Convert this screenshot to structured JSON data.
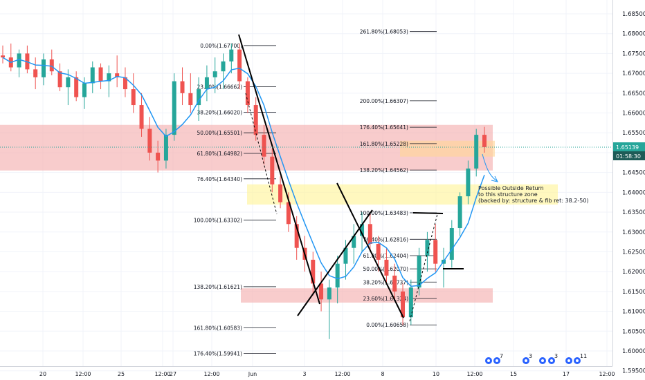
{
  "chart_data": {
    "type": "candlestick",
    "title": "",
    "xlabel": "",
    "ylabel": "",
    "ylim": [
      1.5955,
      1.6885
    ],
    "grid": true,
    "price_ticks": [
      "1.59500",
      "1.60000",
      "1.60500",
      "1.61000",
      "1.61500",
      "1.62000",
      "1.62500",
      "1.63000",
      "1.63500",
      "1.64000",
      "1.64500",
      "1.65000",
      "1.65500",
      "1.66000",
      "1.66500",
      "1.67000",
      "1.67500",
      "1.68000",
      "1.68500"
    ],
    "time_ticks": [
      "20",
      "12:00",
      "25",
      "12:00",
      "27",
      "12:00",
      "Jun",
      "3",
      "12:00",
      "8",
      "10",
      "12:00",
      "15",
      "17",
      "12:00"
    ],
    "current_price": "1.65139",
    "countdown": "01:58:30",
    "candles_ohlc": [
      [
        1.6745,
        1.677,
        1.6725,
        1.674
      ],
      [
        1.674,
        1.6775,
        1.6705,
        1.6715
      ],
      [
        1.6715,
        1.676,
        1.669,
        1.675
      ],
      [
        1.675,
        1.677,
        1.67,
        1.671
      ],
      [
        1.671,
        1.674,
        1.666,
        1.669
      ],
      [
        1.669,
        1.675,
        1.667,
        1.6735
      ],
      [
        1.6735,
        1.676,
        1.6695,
        1.6705
      ],
      [
        1.6705,
        1.6725,
        1.6655,
        1.6665
      ],
      [
        1.6665,
        1.671,
        1.662,
        1.669
      ],
      [
        1.669,
        1.6705,
        1.663,
        1.664
      ],
      [
        1.664,
        1.669,
        1.661,
        1.6675
      ],
      [
        1.6675,
        1.673,
        1.665,
        1.6715
      ],
      [
        1.6715,
        1.6725,
        1.666,
        1.668
      ],
      [
        1.668,
        1.672,
        1.664,
        1.67
      ],
      [
        1.67,
        1.6745,
        1.6665,
        1.669
      ],
      [
        1.669,
        1.6715,
        1.664,
        1.666
      ],
      [
        1.666,
        1.67,
        1.66,
        1.662
      ],
      [
        1.662,
        1.665,
        1.654,
        1.656
      ],
      [
        1.656,
        1.659,
        1.648,
        1.65
      ],
      [
        1.65,
        1.653,
        1.645,
        1.648
      ],
      [
        1.648,
        1.656,
        1.646,
        1.6545
      ],
      [
        1.6545,
        1.67,
        1.653,
        1.668
      ],
      [
        1.668,
        1.6715,
        1.662,
        1.665
      ],
      [
        1.665,
        1.67,
        1.66,
        1.662
      ],
      [
        1.662,
        1.669,
        1.658,
        1.666
      ],
      [
        1.666,
        1.672,
        1.663,
        1.669
      ],
      [
        1.669,
        1.674,
        1.665,
        1.6705
      ],
      [
        1.6705,
        1.675,
        1.666,
        1.673
      ],
      [
        1.673,
        1.6775,
        1.67,
        1.676
      ],
      [
        1.676,
        1.6775,
        1.666,
        1.668
      ],
      [
        1.668,
        1.669,
        1.66,
        1.662
      ],
      [
        1.662,
        1.664,
        1.653,
        1.6545
      ],
      [
        1.6545,
        1.657,
        1.647,
        1.649
      ],
      [
        1.649,
        1.651,
        1.64,
        1.642
      ],
      [
        1.642,
        1.644,
        1.636,
        1.6375
      ],
      [
        1.6375,
        1.64,
        1.63,
        1.632
      ],
      [
        1.632,
        1.634,
        1.623,
        1.626
      ],
      [
        1.626,
        1.629,
        1.62,
        1.623
      ],
      [
        1.623,
        1.625,
        1.614,
        1.617
      ],
      [
        1.617,
        1.62,
        1.61,
        1.613
      ],
      [
        1.613,
        1.618,
        1.603,
        1.616
      ],
      [
        1.616,
        1.624,
        1.612,
        1.622
      ],
      [
        1.622,
        1.628,
        1.618,
        1.626
      ],
      [
        1.626,
        1.632,
        1.622,
        1.629
      ],
      [
        1.629,
        1.635,
        1.625,
        1.632
      ],
      [
        1.632,
        1.6345,
        1.625,
        1.627
      ],
      [
        1.627,
        1.629,
        1.62,
        1.623
      ],
      [
        1.623,
        1.626,
        1.617,
        1.619
      ],
      [
        1.619,
        1.622,
        1.613,
        1.615
      ],
      [
        1.615,
        1.617,
        1.6065,
        1.6085
      ],
      [
        1.6085,
        1.618,
        1.6066,
        1.616
      ],
      [
        1.616,
        1.626,
        1.614,
        1.624
      ],
      [
        1.624,
        1.63,
        1.62,
        1.628
      ],
      [
        1.628,
        1.632,
        1.62,
        1.622
      ],
      [
        1.622,
        1.626,
        1.616,
        1.623
      ],
      [
        1.623,
        1.633,
        1.621,
        1.631
      ],
      [
        1.631,
        1.64,
        1.629,
        1.639
      ],
      [
        1.639,
        1.648,
        1.637,
        1.646
      ],
      [
        1.646,
        1.656,
        1.644,
        1.6545
      ],
      [
        1.6545,
        1.6565,
        1.65,
        1.6514
      ]
    ]
  },
  "fib_left": [
    {
      "label": "0.00%(1.67700)",
      "price": 1.677
    },
    {
      "label": "23.60%(1.66662)",
      "price": 1.66662
    },
    {
      "label": "38.20%(1.66020)",
      "price": 1.6602
    },
    {
      "label": "50.00%(1.65501)",
      "price": 1.65501
    },
    {
      "label": "61.80%(1.64982)",
      "price": 1.64982
    },
    {
      "label": "76.40%(1.64340)",
      "price": 1.6434
    },
    {
      "label": "100.00%(1.63302)",
      "price": 1.63302
    },
    {
      "label": "138.20%(1.61621)",
      "price": 1.61621
    },
    {
      "label": "161.80%(1.60583)",
      "price": 1.60583
    },
    {
      "label": "176.40%(1.59941)",
      "price": 1.59941
    }
  ],
  "fib_right": [
    {
      "label": "261.80%(1.68053)",
      "price": 1.68053
    },
    {
      "label": "200.00%(1.66307)",
      "price": 1.66307
    },
    {
      "label": "176.40%(1.65641)",
      "price": 1.65641
    },
    {
      "label": "161.80%(1.65228)",
      "price": 1.65228
    },
    {
      "label": "138.20%(1.64562)",
      "price": 1.64562
    },
    {
      "label": "100.00%(1.63483)",
      "price": 1.63483
    },
    {
      "label": "76.40%(1.62816)",
      "price": 1.62816
    },
    {
      "label": "61.80%(1.62404)",
      "price": 1.62404
    },
    {
      "label": "50.00%(1.62070)",
      "price": 1.6207
    },
    {
      "label": "38.20%(1.61737)",
      "price": 1.61737
    },
    {
      "label": "23.60%(1.61324)",
      "price": 1.61324
    },
    {
      "label": "0.00%(1.60658)",
      "price": 1.60658
    }
  ],
  "zones": [
    {
      "name": "upper-red-zone",
      "from": 1.6455,
      "to": 1.657,
      "color": "#f5b0b0"
    },
    {
      "name": "yellow-zone",
      "from": 1.6369,
      "to": 1.642,
      "color": "#fff59d"
    },
    {
      "name": "lower-red-zone",
      "from": 1.6122,
      "to": 1.6158,
      "color": "#f5b0b0"
    },
    {
      "name": "orange-zone",
      "from": 1.649,
      "to": 1.653,
      "color": "#ffd59a"
    }
  ],
  "annotation": {
    "line1": "Possible Outside Return",
    "line2": "to this structure zone",
    "line3": "(backed by: structure & fib ret: 38.2-50)"
  },
  "events": [
    {
      "badge": "7"
    },
    {
      "badge": "3"
    },
    {
      "badge": "3"
    },
    {
      "badge": "11"
    }
  ],
  "colors": {
    "up": "#26a69a",
    "down": "#ef5350",
    "ma": "#2196f3",
    "price_tag": "#26a69a",
    "countdown_tag": "#1e5b57"
  }
}
